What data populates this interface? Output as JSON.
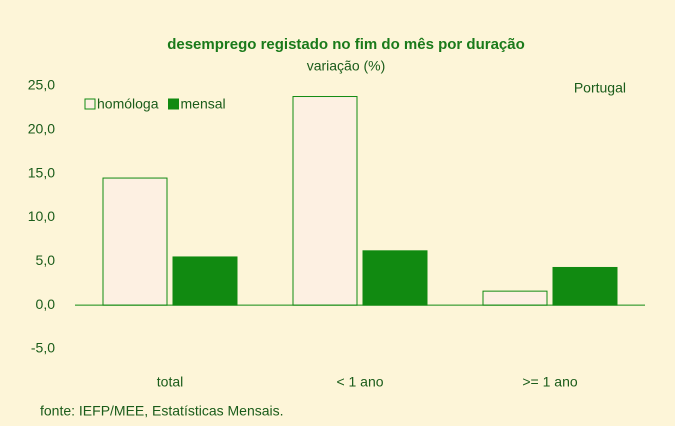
{
  "chart_data": {
    "type": "bar",
    "title": "desemprego registado no fim do mês por duração",
    "subtitle": "variação (%)",
    "annotation": "Portugal",
    "source": "fonte: IEFP/MEE, Estatísticas Mensais.",
    "categories": [
      "total",
      "< 1 ano",
      ">= 1 ano"
    ],
    "series": [
      {
        "name": "homóloga",
        "color": "#fdf0e2",
        "values": [
          14.5,
          23.8,
          1.6
        ]
      },
      {
        "name": "mensal",
        "color": "#118a11",
        "values": [
          5.5,
          6.2,
          4.3
        ]
      }
    ],
    "ylim": [
      -5,
      25
    ],
    "yticks": [
      {
        "value": -5,
        "label": "-5,0"
      },
      {
        "value": 0,
        "label": "0,0"
      },
      {
        "value": 5,
        "label": "5,0"
      },
      {
        "value": 10,
        "label": "10,0"
      },
      {
        "value": 15,
        "label": "15,0"
      },
      {
        "value": 20,
        "label": "20,0"
      },
      {
        "value": 25,
        "label": "25,0"
      }
    ],
    "grid": false,
    "legend": "top-left"
  }
}
